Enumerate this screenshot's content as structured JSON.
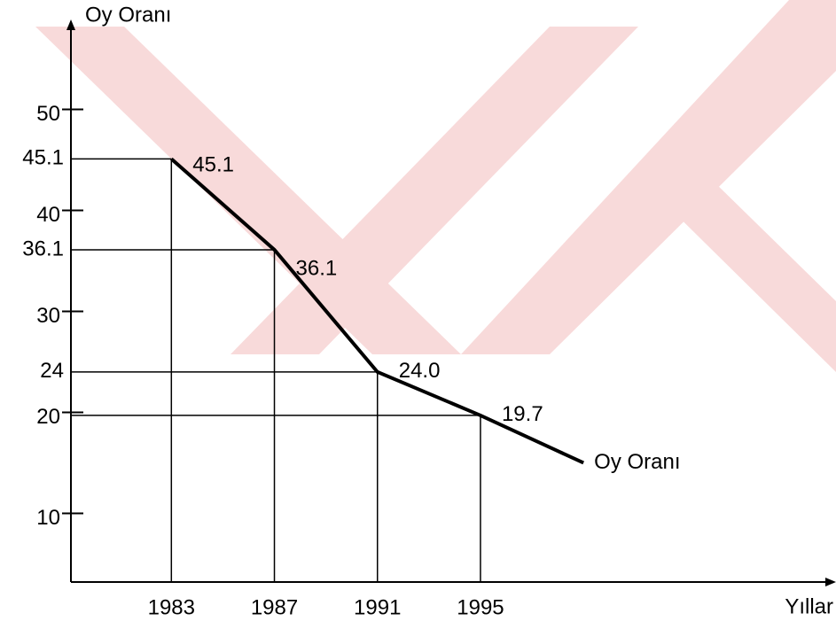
{
  "chart_data": {
    "type": "line",
    "y_axis_label": "Oy Oranı",
    "x_axis_label": "Yıllar",
    "x": [
      1983,
      1987,
      1991,
      1995,
      1999
    ],
    "series": [
      {
        "name": "Oy Oranı",
        "color": "#000000",
        "values": [
          45.1,
          36.1,
          24.0,
          19.7,
          15
        ],
        "value_labels": [
          "45.1",
          "36.1",
          "24.0",
          "19.7",
          null
        ]
      }
    ],
    "xlim": [
      1979.1,
      2008.7
    ],
    "ylim": [
      3.2,
      58.2
    ],
    "xticks": [
      1983,
      1987,
      1991,
      1995
    ],
    "yticks": [
      10,
      20,
      30,
      40,
      50
    ],
    "guide_labels": [
      45.1,
      36.1,
      24
    ]
  }
}
